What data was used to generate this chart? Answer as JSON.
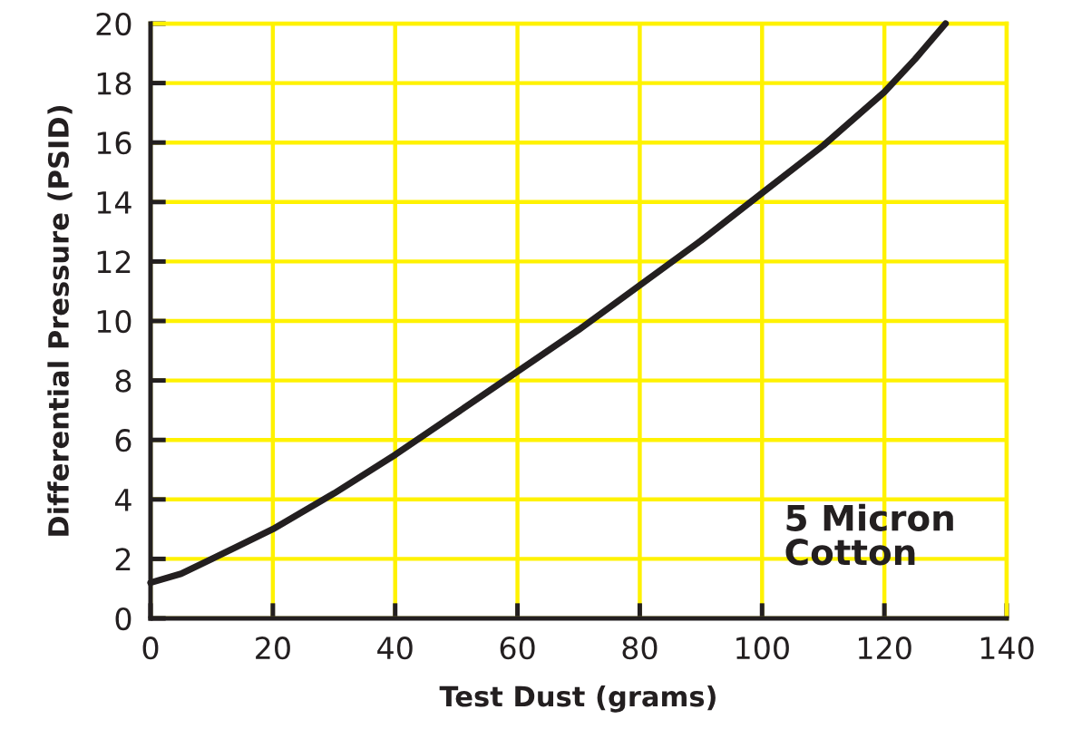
{
  "chart_data": {
    "type": "line",
    "xlabel": "Test Dust (grams)",
    "ylabel": "Differential Pressure (PSID)",
    "xlim": [
      0,
      140
    ],
    "ylim": [
      0,
      20
    ],
    "xticks": [
      0,
      20,
      40,
      60,
      80,
      100,
      120,
      140
    ],
    "yticks": [
      0,
      2,
      4,
      6,
      8,
      10,
      12,
      14,
      16,
      18,
      20
    ],
    "grid": true,
    "legend": false,
    "marker": "none",
    "line_style": "solid",
    "annotations": [
      "5 Micron\nCotton"
    ],
    "series": [
      {
        "color": "#231f20",
        "x": [
          0,
          5,
          10,
          20,
          30,
          40,
          50,
          60,
          70,
          80,
          90,
          100,
          110,
          120,
          125,
          130
        ],
        "values": [
          1.2,
          1.5,
          2.0,
          3.0,
          4.2,
          5.5,
          6.9,
          8.3,
          9.7,
          11.2,
          12.7,
          14.3,
          15.9,
          17.7,
          18.8,
          20
        ]
      }
    ]
  }
}
